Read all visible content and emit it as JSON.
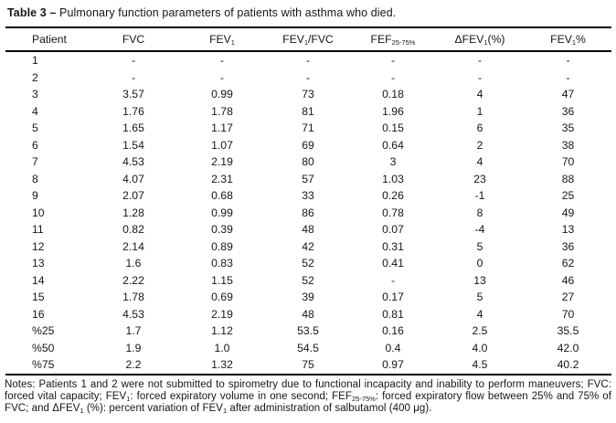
{
  "title": {
    "bold": "Table 3 –",
    "rest": " Pulmonary function parameters of patients with asthma who died."
  },
  "table": {
    "headers": [
      {
        "pre": "Patient"
      },
      {
        "pre": "FVC"
      },
      {
        "pre": "FEV",
        "sub": "1"
      },
      {
        "pre": "FEV",
        "sub": "1",
        "post": "/FVC"
      },
      {
        "pre": "FEF",
        "sub": "25-75%"
      },
      {
        "pre": "ΔFEV",
        "sub": "1",
        "post": "(%)"
      },
      {
        "pre": "FEV",
        "sub": "1",
        "post": "%"
      }
    ],
    "rows": [
      {
        "cells": [
          "1",
          "-",
          "-",
          "-",
          "-",
          "-",
          "-"
        ]
      },
      {
        "cells": [
          "2",
          "-",
          "-",
          "-",
          "-",
          "-",
          "-"
        ]
      },
      {
        "cells": [
          "3",
          "3.57",
          "0.99",
          "73",
          "0.18",
          "4",
          "47"
        ]
      },
      {
        "cells": [
          "4",
          "1.76",
          "1.78",
          "81",
          "1.96",
          "1",
          "36"
        ]
      },
      {
        "cells": [
          "5",
          "1.65",
          "1.17",
          "71",
          "0.15",
          "6",
          "35"
        ]
      },
      {
        "cells": [
          "6",
          "1.54",
          "1.07",
          "69",
          "0.64",
          "2",
          "38"
        ]
      },
      {
        "cells": [
          "7",
          "4.53",
          "2.19",
          "80",
          "3",
          "4",
          "70"
        ]
      },
      {
        "cells": [
          "8",
          "4.07",
          "2.31",
          "57",
          "1.03",
          "23",
          "88"
        ]
      },
      {
        "cells": [
          "9",
          "2.07",
          "0.68",
          "33",
          "0.26",
          "-1",
          "25"
        ]
      },
      {
        "cells": [
          "10",
          "1.28",
          "0.99",
          "86",
          "0.78",
          "8",
          "49"
        ]
      },
      {
        "cells": [
          "11",
          "0.82",
          "0.39",
          "48",
          "0.07",
          "-4",
          "13"
        ]
      },
      {
        "cells": [
          "12",
          "2.14",
          "0.89",
          "42",
          "0.31",
          "5",
          "36"
        ]
      },
      {
        "cells": [
          "13",
          "1.6",
          "0.83",
          "52",
          "0.41",
          "0",
          "62"
        ]
      },
      {
        "cells": [
          "14",
          "2.22",
          "1.15",
          "52",
          "-",
          "13",
          "46"
        ]
      },
      {
        "cells": [
          "15",
          "1.78",
          "0.69",
          "39",
          "0.17",
          "5",
          "27"
        ]
      },
      {
        "cells": [
          "16",
          "4.53",
          "2.19",
          "48",
          "0.81",
          "4",
          "70"
        ]
      },
      {
        "cells": [
          "%25",
          "1.7",
          "1.12",
          "53.5",
          "0.16",
          "2.5",
          "35.5"
        ]
      },
      {
        "cells": [
          "%50",
          "1.9",
          "1.0",
          "54.5",
          "0.4",
          "4.0",
          "42.0"
        ]
      },
      {
        "cells": [
          "%75",
          "2.2",
          "1.32",
          "75",
          "0.97",
          "4.5",
          "40.2"
        ]
      }
    ]
  },
  "notes": {
    "s0": "Notes: Patients 1 and 2 were not submitted to spirometry due to functional incapacity and inability to perform maneuvers; FVC: forced vital capacity; FEV",
    "sub1": "1",
    "s1": ": forced expiratory volume in one second; FEF",
    "sub2": "25-75%",
    "s2": ": forced expiratory flow between 25% and 75% of FVC; and ΔFEV",
    "sub3": "1",
    "s3": " (%): percent variation of FEV",
    "sub4": "1",
    "s4": " after administration of salbutamol (400 μg)."
  },
  "colors": {
    "text": "#161616",
    "rule": "#000000",
    "background": "#ffffff"
  }
}
